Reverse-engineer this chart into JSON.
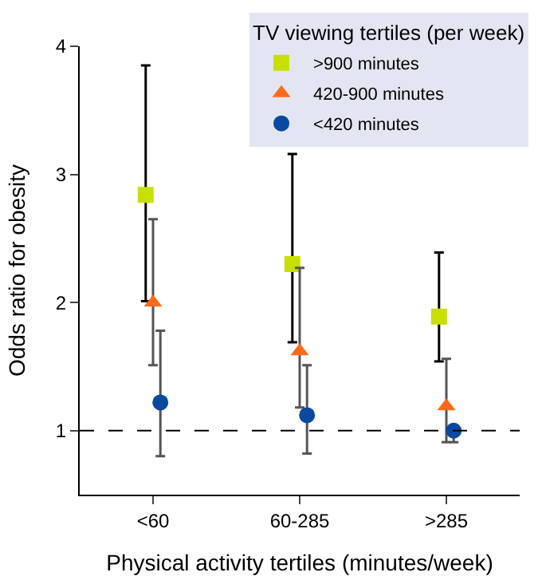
{
  "chart_data": {
    "type": "scatter",
    "xlabel": "Physical activity tertiles (minutes/week)",
    "ylabel": "Odds ratio for obesity",
    "legend_title": "TV viewing tertiles (per week)",
    "legend": "top right",
    "categories": [
      "<60",
      "60-285",
      ">285"
    ],
    "series": [
      {
        "name": ">900 minutes",
        "color": "#c8e000",
        "marker": "square",
        "values": [
          2.84,
          2.3,
          1.89
        ],
        "errors": [
          [
            2.01,
            3.85
          ],
          [
            1.69,
            3.16
          ],
          [
            1.54,
            2.39
          ]
        ]
      },
      {
        "name": "420-900 minutes",
        "color": "#ff6a1a",
        "marker": "triangle",
        "values": [
          2.0,
          1.62,
          1.19
        ],
        "errors": [
          [
            1.51,
            2.65
          ],
          [
            1.18,
            2.27
          ],
          [
            0.91,
            1.56
          ]
        ]
      },
      {
        "name": "<420 minutes",
        "color": "#0a4a9e",
        "marker": "circle",
        "values": [
          1.22,
          1.12,
          1.0
        ],
        "errors": [
          [
            0.8,
            1.78
          ],
          [
            0.82,
            1.51
          ],
          [
            0.91,
            1.0
          ]
        ]
      }
    ],
    "ylim": [
      0.5,
      4
    ],
    "yticks": [
      1,
      2,
      3,
      4
    ],
    "ref_lines": [
      {
        "axis": "y",
        "value": 1,
        "line_style": "dashed",
        "color": "#000000"
      }
    ]
  }
}
